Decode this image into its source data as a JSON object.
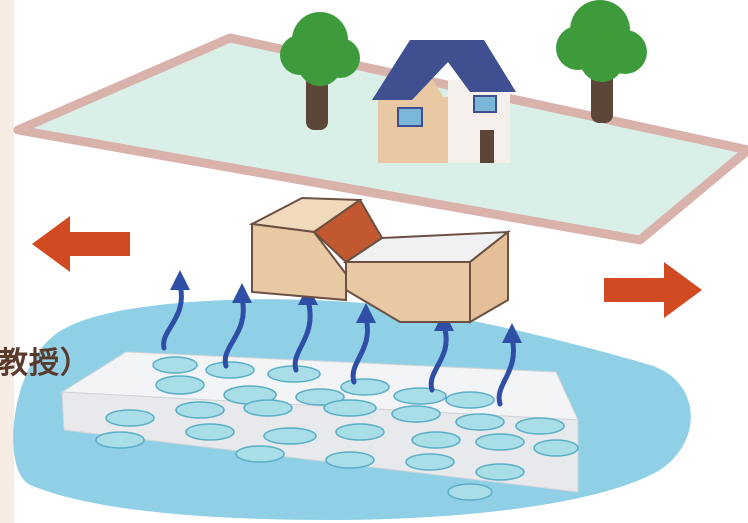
{
  "clipped_caption": "教授）",
  "colors": {
    "ground_plane": "#d9efe8",
    "ground_border": "#d9b2ac",
    "water": "#8fd0e6",
    "rock_block": "#eef0f2",
    "pore": "#a9dde8",
    "fault_block_face": "#e9c9a3",
    "fault_block_top": "#f1d9bb",
    "fault_scarp": "#c2582f",
    "arrow": "#d24a22",
    "fluid_arrow": "#2f4fa6",
    "roof": "#3f4f8f",
    "house_left_wall": "#e9c9a3",
    "house_right_wall": "#f4efea",
    "tree_leaves": "#3e9b3b",
    "tree_trunk": "#5b4637"
  },
  "icons": [
    "house-icon",
    "tree-icon",
    "tree-icon",
    "left-arrow-icon",
    "right-arrow-icon",
    "fluid-arrow-icon"
  ]
}
